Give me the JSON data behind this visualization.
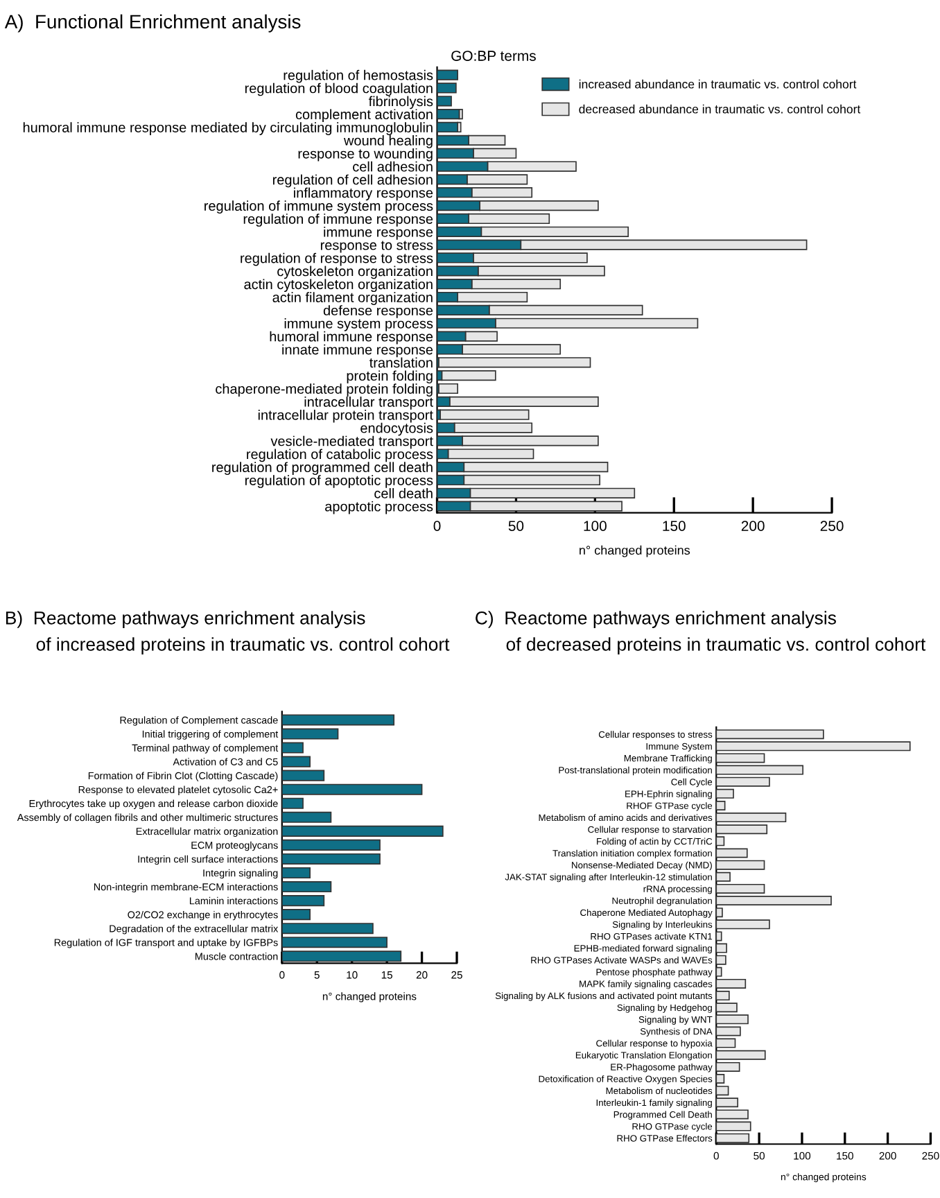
{
  "chart_data": [
    {
      "type": "bar",
      "orientation": "horizontal",
      "stacked": true,
      "title": "A)  Functional Enrichment analysis",
      "subtitle": "GO:BP terms",
      "xlabel": "n° changed proteins",
      "categories": [
        "regulation of hemostasis",
        "regulation of blood coagulation",
        "fibrinolysis",
        "complement activation",
        "humoral immune response mediated by circulating immunoglobulin",
        "wound healing",
        "response to wounding",
        "cell adhesion",
        "regulation of cell adhesion",
        "inflammatory response",
        "regulation of immune system process",
        "regulation of immune response",
        "immune response",
        "response to stress",
        "regulation of response to stress",
        "cytoskeleton organization",
        "actin cytoskeleton organization",
        "actin filament organization",
        "defense response",
        "immune system process",
        "humoral immune response",
        "innate immune response",
        "translation",
        "protein folding",
        "chaperone-mediated protein folding",
        "intracellular transport",
        "intracellular protein transport",
        "endocytosis",
        "vesicle-mediated transport",
        "regulation of catabolic process",
        "regulation of programmed cell death",
        "regulation of apoptotic process",
        "cell death",
        "apoptotic process"
      ],
      "series": [
        {
          "name": "increased abundance in traumatic vs. control cohort",
          "color": "#0f6f86",
          "values": [
            13,
            12,
            9,
            14,
            13,
            20,
            23,
            32,
            19,
            22,
            27,
            20,
            28,
            53,
            23,
            26,
            22,
            13,
            33,
            37,
            18,
            16,
            1,
            3,
            1,
            8,
            2,
            11,
            16,
            7,
            17,
            17,
            21,
            21
          ]
        },
        {
          "name": "decreased abundance in traumatic vs. control cohort",
          "color": "#e6e6e6",
          "values": [
            0,
            0,
            0,
            2,
            2,
            23,
            27,
            56,
            38,
            38,
            75,
            51,
            93,
            181,
            72,
            80,
            56,
            44,
            97,
            128,
            20,
            62,
            96,
            34,
            12,
            94,
            56,
            49,
            86,
            54,
            91,
            86,
            104,
            96
          ]
        }
      ],
      "xlim": [
        0,
        250
      ],
      "xticks": [
        0,
        50,
        100,
        150,
        200,
        250
      ],
      "legend": "top right",
      "grid": false
    },
    {
      "type": "bar",
      "orientation": "horizontal",
      "title": "B)  Reactome pathways enrichment analysis",
      "subtitle": "of increased proteins in traumatic vs. control cohort",
      "xlabel": "n° changed proteins",
      "categories": [
        "Regulation of Complement cascade",
        "Initial triggering of complement",
        "Terminal pathway of complement",
        "Activation of C3 and C5",
        "Formation of Fibrin Clot (Clotting Cascade)",
        "Response to elevated platelet cytosolic Ca2+",
        "Erythrocytes take up oxygen and release carbon dioxide",
        "Assembly of collagen fibrils and other multimeric structures",
        "Extracellular matrix organization",
        "ECM proteoglycans",
        "Integrin cell surface interactions",
        "Integrin signaling",
        "Non-integrin membrane-ECM interactions",
        "Laminin interactions",
        "O2/CO2 exchange in erythrocytes",
        "Degradation of the extracellular matrix",
        "Regulation of IGF transport and uptake by IGFBPs",
        "Muscle contraction"
      ],
      "series": [
        {
          "color": "#0f6f86",
          "values": [
            16,
            8,
            3,
            4,
            6,
            20,
            3,
            7,
            23,
            14,
            14,
            4,
            7,
            6,
            4,
            13,
            15,
            17
          ]
        }
      ],
      "xlim": [
        0,
        25
      ],
      "xticks": [
        0,
        5,
        10,
        15,
        20,
        25
      ],
      "legend": false,
      "grid": false
    },
    {
      "type": "bar",
      "orientation": "horizontal",
      "title": "C)  Reactome pathways enrichment analysis",
      "subtitle": "of decreased proteins in traumatic vs. control cohort",
      "xlabel": "n° changed proteins",
      "categories": [
        "Cellular responses to stress",
        "Immune System",
        "Membrane Trafficking",
        "Post-translational protein modification",
        "Cell Cycle",
        "EPH-Ephrin signaling",
        "RHOF GTPase cycle",
        "Metabolism of amino acids and derivatives",
        "Cellular response to starvation",
        "Folding of actin by CCT/TriC",
        "Translation initiation complex formation",
        "Nonsense-Mediated Decay (NMD)",
        "JAK-STAT signaling after Interleukin-12 stimulation",
        "rRNA processing",
        "Neutrophil degranulation",
        "Chaperone Mediated Autophagy",
        "Signaling by Interleukins",
        "RHO GTPases activate KTN1",
        "EPHB-mediated forward signaling",
        "RHO GTPases Activate WASPs and WAVEs",
        "Pentose phosphate pathway",
        "MAPK family signaling cascades",
        "Signaling by ALK fusions and activated point mutants",
        "Signaling by Hedgehog",
        "Signaling by WNT",
        "Synthesis of DNA",
        "Cellular response to hypoxia",
        "Eukaryotic Translation Elongation",
        "ER-Phagosome pathway",
        "Detoxification of Reactive Oxygen Species",
        "Metabolism of nucleotides",
        "Interleukin-1 family signaling",
        "Programmed Cell Death",
        "RHO GTPase cycle",
        "RHO GTPase Effectors"
      ],
      "series": [
        {
          "color": "#e6e6e6",
          "values": [
            125,
            226,
            56,
            101,
            62,
            20,
            10,
            81,
            59,
            9,
            36,
            56,
            16,
            56,
            134,
            7,
            62,
            6,
            12,
            11,
            6,
            34,
            15,
            24,
            37,
            28,
            22,
            57,
            27,
            9,
            14,
            25,
            37,
            40,
            38
          ]
        }
      ],
      "xlim": [
        0,
        250
      ],
      "xticks": [
        0,
        50,
        100,
        150,
        200,
        250
      ],
      "legend": false,
      "grid": false
    }
  ]
}
